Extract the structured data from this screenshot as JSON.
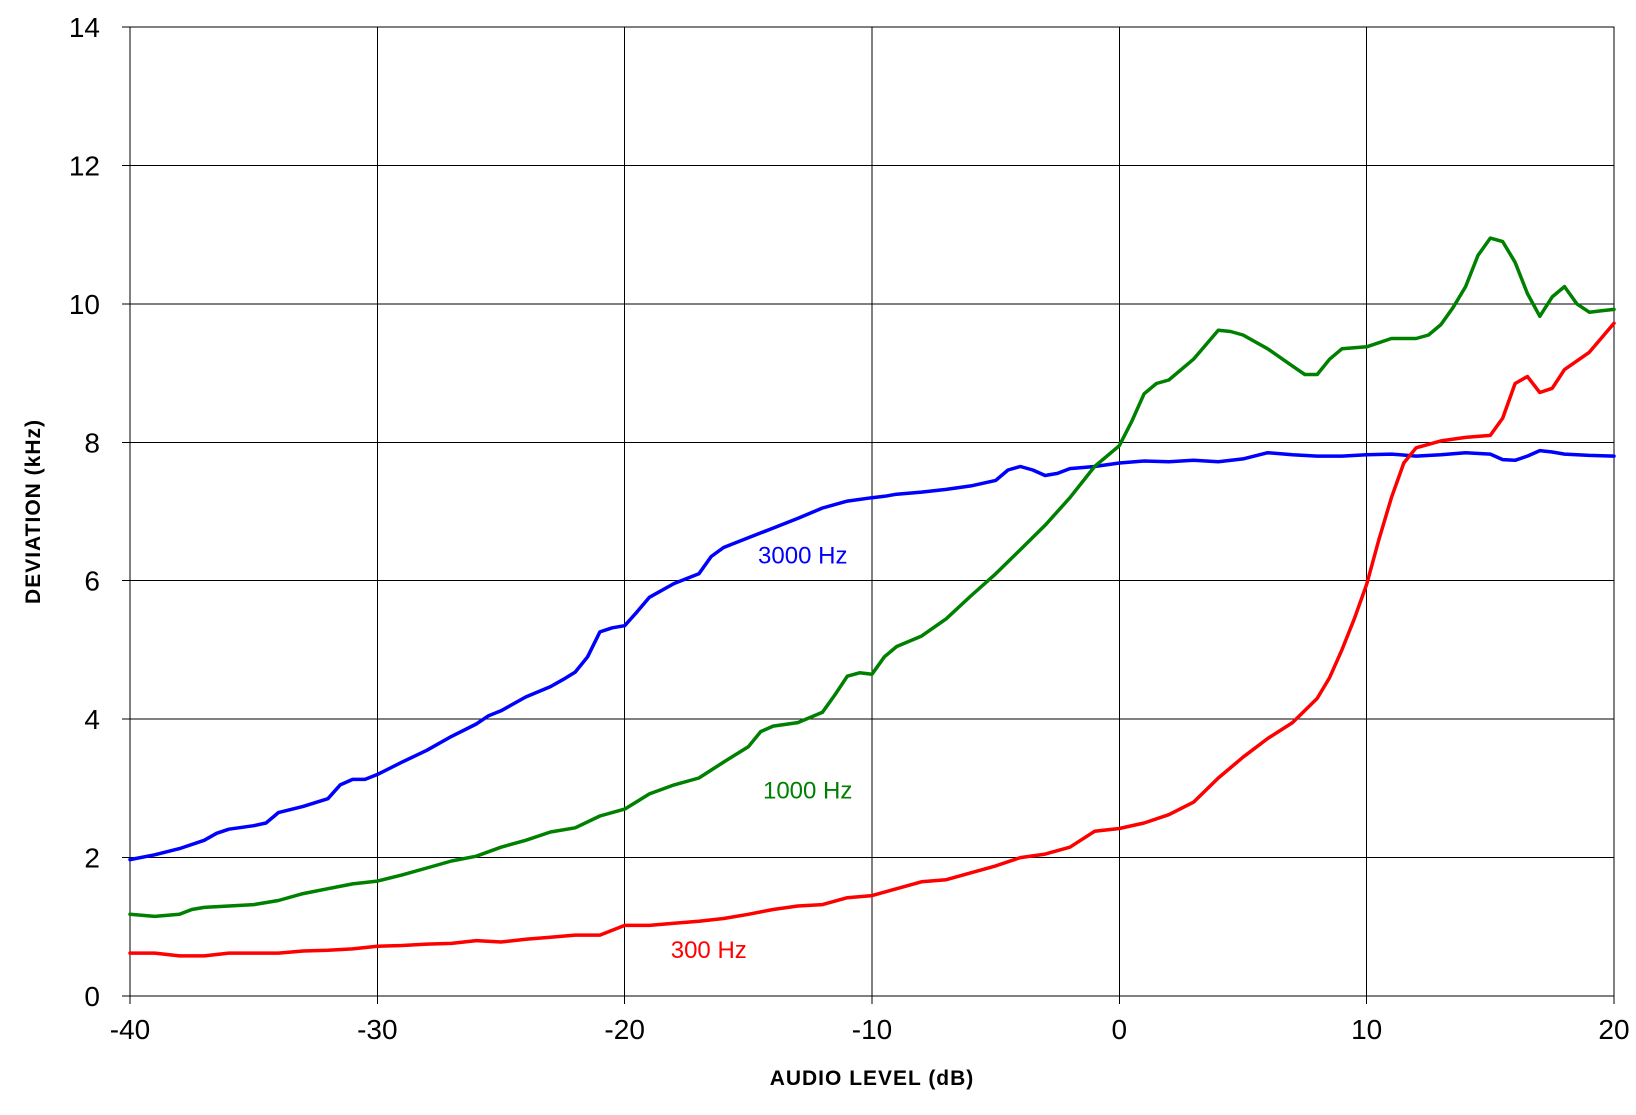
{
  "chart_data": {
    "type": "line",
    "title": "",
    "xlabel": "AUDIO LEVEL (dB)",
    "ylabel": "DEVIATION (kHz)",
    "xlim": [
      -40,
      20
    ],
    "ylim": [
      0,
      14
    ],
    "xticks": [
      -40,
      -30,
      -20,
      -10,
      0,
      10,
      20
    ],
    "yticks": [
      0,
      2,
      4,
      6,
      8,
      10,
      12,
      14
    ],
    "xtick_labels": [
      "-40",
      "-30",
      "-20",
      "-10",
      "0",
      "10",
      "20"
    ],
    "ytick_labels": [
      "0",
      "2",
      "4",
      "6",
      "8",
      "10",
      "12",
      "14"
    ],
    "grid": true,
    "legend": "none",
    "series": [
      {
        "name": "3000 Hz",
        "color": "#0000ff",
        "label_at": [
          -12.8,
          6.25
        ],
        "points": [
          [
            -40,
            1.97
          ],
          [
            -39,
            2.04
          ],
          [
            -38,
            2.13
          ],
          [
            -37,
            2.25
          ],
          [
            -36.5,
            2.35
          ],
          [
            -36,
            2.41
          ],
          [
            -35,
            2.46
          ],
          [
            -34.5,
            2.5
          ],
          [
            -34,
            2.65
          ],
          [
            -33,
            2.74
          ],
          [
            -32,
            2.85
          ],
          [
            -31.5,
            3.05
          ],
          [
            -31,
            3.13
          ],
          [
            -30.5,
            3.13
          ],
          [
            -30,
            3.2
          ],
          [
            -29,
            3.38
          ],
          [
            -28,
            3.55
          ],
          [
            -27,
            3.75
          ],
          [
            -26,
            3.93
          ],
          [
            -25.5,
            4.05
          ],
          [
            -25,
            4.12
          ],
          [
            -24,
            4.32
          ],
          [
            -23,
            4.47
          ],
          [
            -22.5,
            4.57
          ],
          [
            -22,
            4.68
          ],
          [
            -21.5,
            4.9
          ],
          [
            -21,
            5.26
          ],
          [
            -20.5,
            5.32
          ],
          [
            -20,
            5.35
          ],
          [
            -19.5,
            5.55
          ],
          [
            -19,
            5.76
          ],
          [
            -18,
            5.96
          ],
          [
            -17,
            6.1
          ],
          [
            -16.5,
            6.35
          ],
          [
            -16,
            6.48
          ],
          [
            -15,
            6.62
          ],
          [
            -14,
            6.76
          ],
          [
            -13,
            6.9
          ],
          [
            -12,
            7.05
          ],
          [
            -11,
            7.15
          ],
          [
            -10,
            7.2
          ],
          [
            -9.5,
            7.22
          ],
          [
            -9,
            7.25
          ],
          [
            -8,
            7.28
          ],
          [
            -7,
            7.32
          ],
          [
            -6,
            7.37
          ],
          [
            -5,
            7.45
          ],
          [
            -4.5,
            7.6
          ],
          [
            -4,
            7.65
          ],
          [
            -3.5,
            7.6
          ],
          [
            -3,
            7.52
          ],
          [
            -2.5,
            7.55
          ],
          [
            -2,
            7.62
          ],
          [
            -1,
            7.65
          ],
          [
            0,
            7.7
          ],
          [
            1,
            7.73
          ],
          [
            2,
            7.72
          ],
          [
            3,
            7.74
          ],
          [
            4,
            7.72
          ],
          [
            5,
            7.76
          ],
          [
            6,
            7.85
          ],
          [
            7,
            7.82
          ],
          [
            8,
            7.8
          ],
          [
            9,
            7.8
          ],
          [
            10,
            7.82
          ],
          [
            11,
            7.83
          ],
          [
            12,
            7.8
          ],
          [
            13,
            7.82
          ],
          [
            14,
            7.85
          ],
          [
            15,
            7.83
          ],
          [
            15.5,
            7.75
          ],
          [
            16,
            7.74
          ],
          [
            16.5,
            7.8
          ],
          [
            17,
            7.88
          ],
          [
            17.5,
            7.86
          ],
          [
            18,
            7.83
          ],
          [
            19,
            7.81
          ],
          [
            20,
            7.8
          ]
        ]
      },
      {
        "name": "1000 Hz",
        "color": "#008000",
        "label_at": [
          -12.6,
          2.85
        ],
        "points": [
          [
            -40,
            1.18
          ],
          [
            -39,
            1.15
          ],
          [
            -38,
            1.18
          ],
          [
            -37.5,
            1.25
          ],
          [
            -37,
            1.28
          ],
          [
            -36,
            1.3
          ],
          [
            -35,
            1.32
          ],
          [
            -34,
            1.38
          ],
          [
            -33,
            1.48
          ],
          [
            -32,
            1.55
          ],
          [
            -31,
            1.62
          ],
          [
            -30,
            1.66
          ],
          [
            -29,
            1.75
          ],
          [
            -28,
            1.85
          ],
          [
            -27,
            1.95
          ],
          [
            -26,
            2.02
          ],
          [
            -25,
            2.15
          ],
          [
            -24,
            2.25
          ],
          [
            -23,
            2.37
          ],
          [
            -22,
            2.43
          ],
          [
            -21,
            2.6
          ],
          [
            -20,
            2.7
          ],
          [
            -19,
            2.92
          ],
          [
            -18,
            3.05
          ],
          [
            -17,
            3.15
          ],
          [
            -16,
            3.38
          ],
          [
            -15,
            3.6
          ],
          [
            -14.5,
            3.82
          ],
          [
            -14,
            3.9
          ],
          [
            -13,
            3.95
          ],
          [
            -12,
            4.1
          ],
          [
            -11.5,
            4.35
          ],
          [
            -11,
            4.62
          ],
          [
            -10.5,
            4.67
          ],
          [
            -10,
            4.65
          ],
          [
            -9.5,
            4.9
          ],
          [
            -9,
            5.05
          ],
          [
            -8,
            5.2
          ],
          [
            -7,
            5.45
          ],
          [
            -6,
            5.78
          ],
          [
            -5,
            6.1
          ],
          [
            -4,
            6.45
          ],
          [
            -3,
            6.8
          ],
          [
            -2,
            7.2
          ],
          [
            -1,
            7.65
          ],
          [
            0,
            7.95
          ],
          [
            0.5,
            8.3
          ],
          [
            1,
            8.7
          ],
          [
            1.5,
            8.85
          ],
          [
            2,
            8.9
          ],
          [
            3,
            9.2
          ],
          [
            4,
            9.62
          ],
          [
            4.5,
            9.6
          ],
          [
            5,
            9.55
          ],
          [
            6,
            9.35
          ],
          [
            7,
            9.1
          ],
          [
            7.5,
            8.98
          ],
          [
            8,
            8.98
          ],
          [
            8.5,
            9.2
          ],
          [
            9,
            9.35
          ],
          [
            10,
            9.38
          ],
          [
            11,
            9.5
          ],
          [
            12,
            9.5
          ],
          [
            12.5,
            9.55
          ],
          [
            13,
            9.7
          ],
          [
            13.5,
            9.95
          ],
          [
            14,
            10.25
          ],
          [
            14.5,
            10.7
          ],
          [
            15,
            10.95
          ],
          [
            15.5,
            10.9
          ],
          [
            16,
            10.6
          ],
          [
            16.5,
            10.15
          ],
          [
            17,
            9.82
          ],
          [
            17.5,
            10.1
          ],
          [
            18,
            10.25
          ],
          [
            18.5,
            10.0
          ],
          [
            19,
            9.88
          ],
          [
            19.5,
            9.9
          ],
          [
            20,
            9.92
          ]
        ]
      },
      {
        "name": "300 Hz",
        "color": "#ff0000",
        "label_at": [
          -16.6,
          0.55
        ],
        "points": [
          [
            -40,
            0.62
          ],
          [
            -39,
            0.62
          ],
          [
            -38,
            0.58
          ],
          [
            -37,
            0.58
          ],
          [
            -36,
            0.62
          ],
          [
            -35,
            0.62
          ],
          [
            -34,
            0.62
          ],
          [
            -33,
            0.65
          ],
          [
            -32,
            0.66
          ],
          [
            -31,
            0.68
          ],
          [
            -30,
            0.72
          ],
          [
            -29,
            0.73
          ],
          [
            -28,
            0.75
          ],
          [
            -27,
            0.76
          ],
          [
            -26,
            0.8
          ],
          [
            -25,
            0.78
          ],
          [
            -24,
            0.82
          ],
          [
            -23,
            0.85
          ],
          [
            -22,
            0.88
          ],
          [
            -21,
            0.88
          ],
          [
            -20,
            1.02
          ],
          [
            -19,
            1.02
          ],
          [
            -18,
            1.05
          ],
          [
            -17,
            1.08
          ],
          [
            -16,
            1.12
          ],
          [
            -15,
            1.18
          ],
          [
            -14,
            1.25
          ],
          [
            -13,
            1.3
          ],
          [
            -12,
            1.32
          ],
          [
            -11,
            1.42
          ],
          [
            -10,
            1.45
          ],
          [
            -9,
            1.55
          ],
          [
            -8,
            1.65
          ],
          [
            -7,
            1.68
          ],
          [
            -6,
            1.78
          ],
          [
            -5,
            1.88
          ],
          [
            -4,
            2.0
          ],
          [
            -3,
            2.05
          ],
          [
            -2,
            2.15
          ],
          [
            -1,
            2.38
          ],
          [
            0,
            2.42
          ],
          [
            1,
            2.5
          ],
          [
            2,
            2.62
          ],
          [
            3,
            2.8
          ],
          [
            4,
            3.15
          ],
          [
            5,
            3.45
          ],
          [
            6,
            3.72
          ],
          [
            7,
            3.95
          ],
          [
            8,
            4.3
          ],
          [
            8.5,
            4.6
          ],
          [
            9,
            5.0
          ],
          [
            9.5,
            5.45
          ],
          [
            10,
            5.95
          ],
          [
            10.5,
            6.6
          ],
          [
            11,
            7.2
          ],
          [
            11.5,
            7.7
          ],
          [
            12,
            7.92
          ],
          [
            13,
            8.02
          ],
          [
            14,
            8.07
          ],
          [
            15,
            8.1
          ],
          [
            15.5,
            8.35
          ],
          [
            16,
            8.85
          ],
          [
            16.5,
            8.95
          ],
          [
            17,
            8.72
          ],
          [
            17.5,
            8.78
          ],
          [
            18,
            9.05
          ],
          [
            19,
            9.3
          ],
          [
            20,
            9.72
          ]
        ]
      }
    ]
  }
}
